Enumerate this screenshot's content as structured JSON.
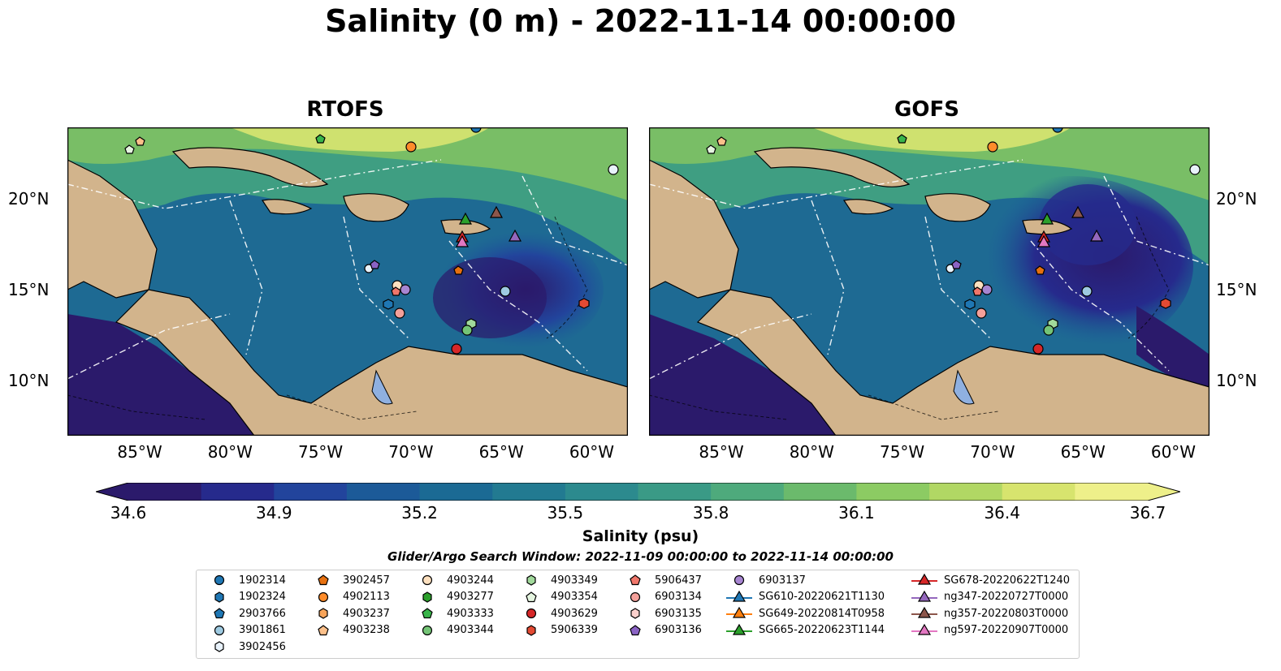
{
  "title": "Salinity (0 m) - 2022-11-14 00:00:00",
  "panels": [
    {
      "title": "RTOFS"
    },
    {
      "title": "GOFS"
    }
  ],
  "axes": {
    "lon_ticks": [
      "85°W",
      "80°W",
      "75°W",
      "70°W",
      "65°W",
      "60°W"
    ],
    "lat_ticks": [
      "20°N",
      "15°N",
      "10°N"
    ],
    "lon_range": [
      -89,
      -58
    ],
    "lat_range": [
      7,
      24
    ]
  },
  "colorbar": {
    "label": "Salinity (psu)",
    "ticks": [
      "34.6",
      "34.9",
      "35.2",
      "35.5",
      "35.8",
      "36.1",
      "36.4",
      "36.7"
    ],
    "colors": [
      "#2b1a6b",
      "#262a8c",
      "#22449c",
      "#1c5a98",
      "#1b6a94",
      "#227a91",
      "#2c8a8e",
      "#3a9a86",
      "#4eaa7c",
      "#6bba6c",
      "#8ccb63",
      "#b1d764",
      "#d7e46e",
      "#eef08a"
    ]
  },
  "search_window": "Glider/Argo Search Window: 2022-11-09 00:00:00 to 2022-11-14 00:00:00",
  "legend": [
    {
      "label": "1902314",
      "marker": "circle",
      "color": "#1f77b4"
    },
    {
      "label": "1902324",
      "marker": "hexagon",
      "color": "#1f77b4"
    },
    {
      "label": "2903766",
      "marker": "pentagon",
      "color": "#1f77b4"
    },
    {
      "label": "3901861",
      "marker": "circle",
      "color": "#9ecae1"
    },
    {
      "label": "3902456",
      "marker": "hexagon",
      "color": "#e8f2fb"
    },
    {
      "label": "3902457",
      "marker": "pentagon",
      "color": "#e6700f"
    },
    {
      "label": "4902113",
      "marker": "circle",
      "color": "#ff8c2a"
    },
    {
      "label": "4903237",
      "marker": "hexagon",
      "color": "#f7a45a"
    },
    {
      "label": "4903238",
      "marker": "pentagon",
      "color": "#fbc08a"
    },
    {
      "label": "4903244",
      "marker": "circle",
      "color": "#fde0bf"
    },
    {
      "label": "4903277",
      "marker": "hexagon",
      "color": "#2ca02c"
    },
    {
      "label": "4903333",
      "marker": "pentagon",
      "color": "#39b54a"
    },
    {
      "label": "4903344",
      "marker": "circle",
      "color": "#74c476"
    },
    {
      "label": "4903349",
      "marker": "hexagon",
      "color": "#a1d99b"
    },
    {
      "label": "4903354",
      "marker": "pentagon",
      "color": "#e5f5e0"
    },
    {
      "label": "4903629",
      "marker": "circle",
      "color": "#d62728"
    },
    {
      "label": "5906339",
      "marker": "hexagon",
      "color": "#e34a33"
    },
    {
      "label": "5906437",
      "marker": "pentagon",
      "color": "#f0766a"
    },
    {
      "label": "6903134",
      "marker": "circle",
      "color": "#f4a09a"
    },
    {
      "label": "6903135",
      "marker": "hexagon",
      "color": "#fbd0cc"
    },
    {
      "label": "6903136",
      "marker": "pentagon",
      "color": "#8a63c4"
    },
    {
      "label": "6903137",
      "marker": "circle",
      "color": "#a785d1"
    },
    {
      "label": "SG610-20220621T1130",
      "marker": "triangle-line",
      "color": "#1f77b4"
    },
    {
      "label": "SG649-20220814T0958",
      "marker": "triangle-line",
      "color": "#ff7f0e"
    },
    {
      "label": "SG665-20220623T1144",
      "marker": "triangle-line",
      "color": "#2ca02c"
    },
    {
      "label": "SG678-20220622T1240",
      "marker": "triangle-line",
      "color": "#d62728"
    },
    {
      "label": "ng347-20220727T0000",
      "marker": "triangle-line",
      "color": "#9467bd"
    },
    {
      "label": "ng357-20220803T0000",
      "marker": "triangle-line",
      "color": "#8c564b"
    },
    {
      "label": "ng597-20220907T0000",
      "marker": "triangle-line",
      "color": "#e377c2"
    }
  ],
  "observations": [
    {
      "id": "1902314",
      "lon": -65.5,
      "lat": 23.6
    },
    {
      "id": "4902113",
      "lon": -70.0,
      "lat": 22.6
    },
    {
      "id": "3901861",
      "lon": -58.6,
      "lat": 21.4
    },
    {
      "id": "4903238",
      "lon": -88.0,
      "lat": 22.8
    },
    {
      "id": "4903354",
      "lon": -88.7,
      "lat": 22.5
    },
    {
      "id": "4903333",
      "lon": -75.0,
      "lat": 23.0
    },
    {
      "id": "SG665-20220623T1144",
      "lon": -66.6,
      "lat": 18.6
    },
    {
      "id": "ng357-20220803T0000",
      "lon": -65.0,
      "lat": 19.0
    },
    {
      "id": "SG678-20220622T1240",
      "lon": -67.0,
      "lat": 17.9
    },
    {
      "id": "ng597-20220907T0000",
      "lon": -67.0,
      "lat": 17.6
    },
    {
      "id": "ng347-20220727T0000",
      "lon": -64.3,
      "lat": 17.8
    },
    {
      "id": "3902457",
      "lon": -67.2,
      "lat": 15.9
    },
    {
      "id": "3902456",
      "lon": -72.2,
      "lat": 16.1
    },
    {
      "id": "6903136",
      "lon": -71.9,
      "lat": 16.2
    },
    {
      "id": "3901861",
      "lon": -64.9,
      "lat": 14.8
    },
    {
      "id": "4903244",
      "lon": -70.9,
      "lat": 15.1
    },
    {
      "id": "6903137",
      "lon": -70.2,
      "lat": 14.9
    },
    {
      "id": "5906437",
      "lon": -70.9,
      "lat": 14.8
    },
    {
      "id": "1902324",
      "lon": -71.2,
      "lat": 14.2
    },
    {
      "id": "6903134",
      "lon": -70.6,
      "lat": 13.6
    },
    {
      "id": "4903349",
      "lon": -66.4,
      "lat": 13.1
    },
    {
      "id": "4903344",
      "lon": -66.6,
      "lat": 12.6
    },
    {
      "id": "4903629",
      "lon": -67.2,
      "lat": 11.6
    },
    {
      "id": "5906339",
      "lon": -59.9,
      "lat": 14.2
    }
  ]
}
